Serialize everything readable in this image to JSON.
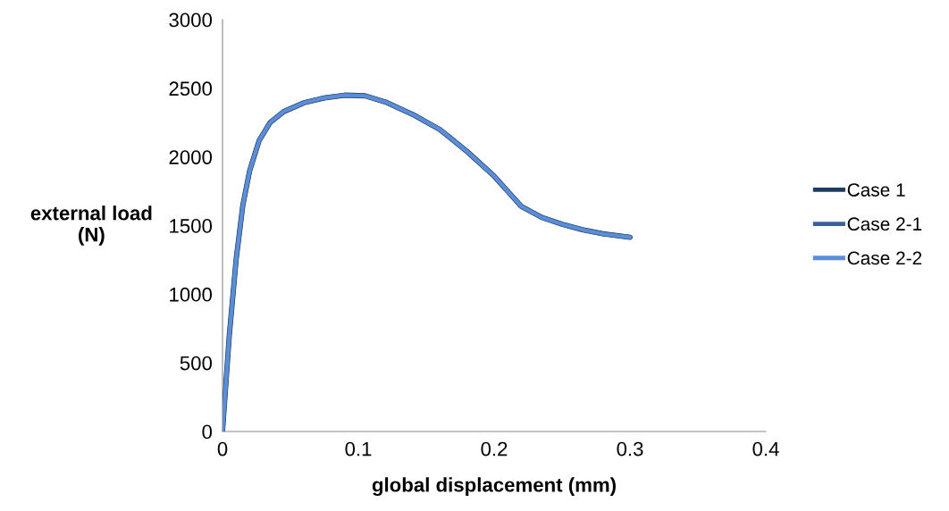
{
  "chart_data": {
    "type": "line",
    "xlabel": "global displacement (mm)",
    "ylabel": "external load\n(N)",
    "x": [
      0,
      0.005,
      0.01,
      0.015,
      0.02,
      0.027,
      0.035,
      0.045,
      0.06,
      0.075,
      0.09,
      0.105,
      0.12,
      0.14,
      0.16,
      0.18,
      0.2,
      0.21,
      0.22,
      0.235,
      0.25,
      0.265,
      0.28,
      0.3
    ],
    "series": [
      {
        "name": "Case 1",
        "color": "#1f3a60",
        "values": [
          0,
          700,
          1250,
          1650,
          1900,
          2120,
          2250,
          2330,
          2395,
          2430,
          2450,
          2445,
          2400,
          2310,
          2200,
          2040,
          1860,
          1750,
          1640,
          1560,
          1510,
          1470,
          1440,
          1415
        ]
      },
      {
        "name": "Case 2-1",
        "color": "#3a6096",
        "values": [
          0,
          700,
          1250,
          1650,
          1900,
          2120,
          2250,
          2330,
          2395,
          2430,
          2450,
          2445,
          2400,
          2310,
          2200,
          2040,
          1860,
          1750,
          1640,
          1560,
          1510,
          1470,
          1440,
          1415
        ]
      },
      {
        "name": "Case 2-2",
        "color": "#5b8ed6",
        "values": [
          0,
          700,
          1250,
          1650,
          1900,
          2120,
          2250,
          2330,
          2395,
          2430,
          2450,
          2445,
          2400,
          2310,
          2200,
          2040,
          1860,
          1750,
          1640,
          1560,
          1510,
          1470,
          1440,
          1415
        ]
      }
    ],
    "xlim": [
      0,
      0.4
    ],
    "xticks": [
      0,
      0.1,
      0.2,
      0.3,
      0.4
    ],
    "ylim": [
      0,
      3000
    ],
    "yticks": [
      0,
      500,
      1000,
      1500,
      2000,
      2500,
      3000
    ],
    "grid": false,
    "legend": "right",
    "marker": "none",
    "line_style": "solid"
  }
}
